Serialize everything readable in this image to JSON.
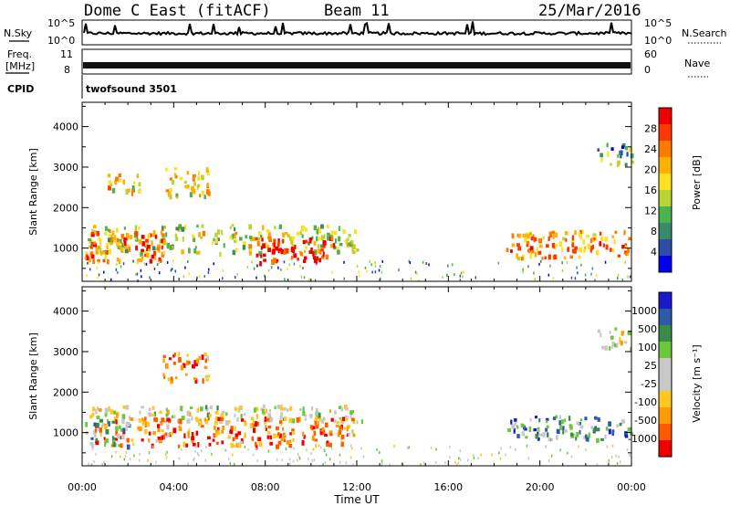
{
  "header": {
    "station": "Dome C East (fitACF)",
    "beam": "Beam 11",
    "date": "25/Mar/2016"
  },
  "aux": {
    "nsky_label": "N.Sky",
    "nsearch_label": "N.Search",
    "nsky_ticks": [
      "10^5",
      "10^0"
    ],
    "nsearch_ticks": [
      "10^5",
      "10^0"
    ],
    "freq_label_1": "Freq.",
    "freq_label_2": "[MHz]",
    "freq_ticks": [
      "11",
      "8"
    ],
    "nave_label": "Nave",
    "nave_ticks": [
      "60",
      "0"
    ],
    "cpid_label": "CPID",
    "cpid_value": "twofsound 3501"
  },
  "chart_data": [
    {
      "type": "heatmap",
      "panel": "power",
      "ylabel": "Slant Range [km]",
      "xlabel": "Time UT",
      "x_ticks": [
        "00:00",
        "04:00",
        "08:00",
        "12:00",
        "16:00",
        "20:00",
        "00:00"
      ],
      "x_range_hours": [
        0,
        24
      ],
      "y_ticks": [
        1000,
        2000,
        3000,
        4000
      ],
      "ylim": [
        180,
        4600
      ],
      "colorbar_label": "Power [dB]",
      "colorbar_ticks": [
        "28",
        "24",
        "20",
        "16",
        "12",
        "8",
        "4"
      ],
      "colorbar_colors": [
        "#0000ee",
        "#2d4da6",
        "#3a8a6a",
        "#4cb34c",
        "#b8d633",
        "#ffe020",
        "#ffb000",
        "#ff7a00",
        "#ff3800",
        "#ee0000"
      ],
      "echo_regions": [
        {
          "t": [
            0.2,
            12.2
          ],
          "r": [
            900,
            1600
          ],
          "level": 0.5
        },
        {
          "t": [
            7.5,
            11.0
          ],
          "r": [
            650,
            1300
          ],
          "level": 0.95
        },
        {
          "t": [
            0.1,
            3.5
          ],
          "r": [
            700,
            1450
          ],
          "level": 0.75
        },
        {
          "t": [
            1.0,
            2.5
          ],
          "r": [
            2400,
            2900
          ],
          "level": 0.6
        },
        {
          "t": [
            3.5,
            5.5
          ],
          "r": [
            2300,
            3000
          ],
          "level": 0.6
        },
        {
          "t": [
            18.5,
            24.0
          ],
          "r": [
            750,
            1450
          ],
          "level": 0.7
        },
        {
          "t": [
            22.5,
            24.0
          ],
          "r": [
            3100,
            3600
          ],
          "level": 0.3
        }
      ]
    },
    {
      "type": "heatmap",
      "panel": "velocity",
      "ylabel": "Slant Range [km]",
      "xlabel": "Time UT",
      "x_ticks": [
        "00:00",
        "04:00",
        "08:00",
        "12:00",
        "16:00",
        "20:00",
        "00:00"
      ],
      "x_range_hours": [
        0,
        24
      ],
      "y_ticks": [
        1000,
        2000,
        3000,
        4000
      ],
      "ylim": [
        180,
        4600
      ],
      "colorbar_label": "Velocity [m s⁻¹]",
      "colorbar_ticks": [
        "1000",
        "500",
        "100",
        "25",
        "-25",
        "-100",
        "-500",
        "-1000"
      ],
      "colorbar_colors": [
        "#ee0000",
        "#ff5a00",
        "#ff9a00",
        "#ffc820",
        "#c8c8c8",
        "#c8c8c8",
        "#6ac83a",
        "#3a8a4a",
        "#2d5aa6",
        "#1a1acc"
      ],
      "echo_regions": [
        {
          "t": [
            0.2,
            12.2
          ],
          "r": [
            1300,
            1700
          ],
          "level": 0.5
        },
        {
          "t": [
            0.5,
            12.0
          ],
          "r": [
            700,
            1400
          ],
          "level": 0.2
        },
        {
          "t": [
            0.1,
            2.0
          ],
          "r": [
            700,
            1300
          ],
          "level": 0.65
        },
        {
          "t": [
            3.5,
            5.5
          ],
          "r": [
            2300,
            3000
          ],
          "level": 0.2
        },
        {
          "t": [
            18.5,
            24.0
          ],
          "r": [
            850,
            1450
          ],
          "level": 0.75
        },
        {
          "t": [
            22.5,
            24.0
          ],
          "r": [
            3100,
            3600
          ],
          "level": 0.5
        }
      ]
    }
  ]
}
